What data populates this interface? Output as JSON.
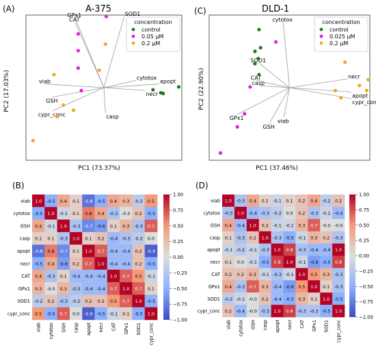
{
  "panels": {
    "A": {
      "label": "(A)",
      "title": "A-375",
      "xlabel": "PC1 (73.37%)",
      "ylabel": "PC2 (17.03%)"
    },
    "C": {
      "label": "(C)",
      "title": "DLD-1",
      "xlabel": "PC1 (37.46%)",
      "ylabel": "PC2 (22.90%)"
    },
    "B": {
      "label": "(B)"
    },
    "D": {
      "label": "(D)"
    }
  },
  "colors": {
    "control": "#1a7a1a",
    "low": "#e619e6",
    "high": "#f0a820",
    "loading": "#9a9a9a",
    "frame": "#333333"
  },
  "colorbar_ticks": [
    "1.00",
    "0.75",
    "0.50",
    "0.25",
    "0.00",
    "−0.25",
    "−0.50",
    "−0.75",
    "−1.00"
  ],
  "chart_data": [
    {
      "type": "scatter",
      "panel": "A",
      "title": "A-375",
      "xlabel": "PC1 (73.37%)",
      "ylabel": "PC2 (17.03%)",
      "xlim": [
        -1,
        1
      ],
      "ylim": [
        -1,
        1
      ],
      "grid": false,
      "legend": {
        "title": "concentration",
        "position": "top-right",
        "entries": [
          "control",
          "0.05 μM",
          "0.2 μM"
        ]
      },
      "series": [
        {
          "name": "control",
          "color": "#1a7a1a",
          "points": [
            [
              0.63,
              -0.03
            ],
            [
              0.73,
              -0.07
            ],
            [
              0.76,
              -0.08
            ],
            [
              0.96,
              0.01
            ]
          ]
        },
        {
          "name": "0.05 μM",
          "color": "#e619e6",
          "points": [
            [
              0.03,
              0.98
            ],
            [
              -0.33,
              0.74
            ],
            [
              -0.33,
              0.51
            ],
            [
              -0.33,
              0.27
            ],
            [
              -0.29,
              -0.04
            ]
          ]
        },
        {
          "name": "0.2 μM",
          "color": "#f0a820",
          "points": [
            [
              -0.6,
              -0.4
            ],
            [
              -0.52,
              -0.24
            ],
            [
              -0.39,
              -0.31
            ],
            [
              -0.64,
              0.18
            ],
            [
              -0.91,
              -0.73
            ],
            [
              -0.06,
              0.24
            ],
            [
              0.02,
              0.6
            ]
          ]
        }
      ],
      "loadings": [
        {
          "name": "GPx1",
          "x": -0.37,
          "y": 0.96
        },
        {
          "name": "CAT",
          "x": -0.37,
          "y": 0.9
        },
        {
          "name": "SOD1",
          "x": 0.26,
          "y": 0.98
        },
        {
          "name": "cytotox",
          "x": 0.41,
          "y": 0.1
        },
        {
          "name": "apopt",
          "x": 0.71,
          "y": 0.05
        },
        {
          "name": "necr",
          "x": 0.53,
          "y": -0.04
        },
        {
          "name": "casp",
          "x": 0.02,
          "y": -0.35
        },
        {
          "name": "viab",
          "x": -0.75,
          "y": 0.05
        },
        {
          "name": "GSH",
          "x": -0.66,
          "y": -0.13
        },
        {
          "name": "cypr_conc",
          "x": -0.66,
          "y": -0.32
        }
      ]
    },
    {
      "type": "scatter",
      "panel": "C",
      "title": "DLD-1",
      "xlabel": "PC1 (37.46%)",
      "ylabel": "PC2 (22.90%)",
      "xlim": [
        -1,
        1
      ],
      "ylim": [
        -1,
        1
      ],
      "grid": false,
      "legend": {
        "title": "concentration",
        "position": "top-right",
        "entries": [
          "control",
          "0.025 μM",
          "0.2 μM"
        ]
      },
      "series": [
        {
          "name": "control",
          "color": "#1a7a1a",
          "points": [
            [
              -0.38,
              0.8
            ],
            [
              -0.36,
              0.55
            ],
            [
              -0.43,
              0.5
            ],
            [
              -0.39,
              0.4
            ],
            [
              -0.43,
              0.33
            ],
            [
              -0.38,
              0.18
            ]
          ]
        },
        {
          "name": "0.025 μM",
          "color": "#e619e6",
          "points": [
            [
              -0.17,
              0.63
            ],
            [
              -0.49,
              0.01
            ],
            [
              -0.56,
              -0.36
            ],
            [
              -0.65,
              -0.54
            ],
            [
              -0.86,
              -0.9
            ]
          ]
        },
        {
          "name": "0.2 μM",
          "color": "#f0a820",
          "points": [
            [
              0.69,
              0.35
            ],
            [
              0.64,
              -0.14
            ],
            [
              0.87,
              0.03
            ],
            [
              0.57,
              -0.04
            ],
            [
              0.96,
              -0.04
            ],
            [
              0.98,
              0.11
            ]
          ]
        }
      ],
      "loadings": [
        {
          "name": "cytotox",
          "x": -0.08,
          "y": 0.9
        },
        {
          "name": "SOD1",
          "x": -0.38,
          "y": 0.34
        },
        {
          "name": "CAT",
          "x": -0.41,
          "y": 0.1
        },
        {
          "name": "casp",
          "x": -0.38,
          "y": 0.03
        },
        {
          "name": "necr",
          "x": 0.72,
          "y": 0.12
        },
        {
          "name": "apopt",
          "x": 0.77,
          "y": -0.06
        },
        {
          "name": "cypr_conc",
          "x": 0.77,
          "y": -0.15
        },
        {
          "name": "GPx1",
          "x": -0.65,
          "y": -0.37
        },
        {
          "name": "GSH",
          "x": -0.25,
          "y": -0.49
        },
        {
          "name": "viab",
          "x": -0.07,
          "y": -0.41
        }
      ]
    },
    {
      "type": "heatmap",
      "panel": "B",
      "labels": [
        "viab",
        "cytotox",
        "GSH",
        "casp",
        "apopt",
        "necr",
        "CAT",
        "GPx1",
        "SOD1",
        "cypr_conc"
      ],
      "zlim": [
        -1,
        1
      ],
      "colormap": "coolwarm",
      "values": [
        [
          1.0,
          -0.5,
          0.4,
          0.1,
          -0.8,
          -0.5,
          0.4,
          0.3,
          -0.2,
          0.5
        ],
        [
          -0.5,
          1.0,
          -0.1,
          0.1,
          0.6,
          0.4,
          -0.3,
          -0.0,
          0.2,
          -0.5
        ],
        [
          0.4,
          -0.1,
          1.0,
          -0.3,
          -0.7,
          -0.6,
          0.1,
          0.3,
          -0.3,
          0.7
        ],
        [
          0.1,
          0.1,
          -0.3,
          1.0,
          0.1,
          0.2,
          -0.4,
          -0.3,
          -0.2,
          0.0
        ],
        [
          -0.8,
          0.6,
          -0.7,
          0.1,
          1.0,
          0.7,
          -0.4,
          -0.4,
          0.2,
          -0.9
        ],
        [
          -0.5,
          0.4,
          -0.6,
          0.2,
          0.7,
          1.0,
          -0.4,
          -0.4,
          0.2,
          -0.5
        ],
        [
          0.4,
          -0.3,
          0.1,
          -0.4,
          -0.4,
          -0.4,
          1.0,
          0.7,
          0.5,
          -0.1
        ],
        [
          0.3,
          -0.0,
          0.3,
          -0.3,
          -0.4,
          -0.4,
          0.7,
          1.0,
          0.7,
          0.1
        ],
        [
          -0.2,
          0.2,
          -0.3,
          -0.2,
          0.2,
          0.2,
          0.5,
          0.7,
          1.0,
          -0.5
        ],
        [
          0.5,
          -0.5,
          0.7,
          0.0,
          -0.9,
          -0.5,
          -0.1,
          0.1,
          -0.5,
          1.0
        ]
      ],
      "display": [
        [
          "1.0",
          "-0.5",
          "0.4",
          "0.1",
          "-0.8",
          "-0.5",
          "0.4",
          "0.3",
          "-0.2",
          "0.5"
        ],
        [
          "-0.5",
          "1.0",
          "-0.1",
          "0.1",
          "0.6",
          "0.4",
          "-0.3",
          "-0.0",
          "0.2",
          "-0.5"
        ],
        [
          "0.4",
          "-0.1",
          "1.0",
          "-0.3",
          "-0.7",
          "-0.6",
          "0.1",
          "0.3",
          "-0.3",
          "0.7"
        ],
        [
          "0.1",
          "0.1",
          "-0.3",
          "1.0",
          "0.1",
          "0.2",
          "-0.4",
          "-0.3",
          "-0.2",
          "0.0"
        ],
        [
          "-0.8",
          "0.6",
          "-0.7",
          "0.1",
          "1.0",
          "0.7",
          "-0.4",
          "-0.4",
          "0.2",
          "-0.9"
        ],
        [
          "-0.5",
          "0.4",
          "-0.6",
          "0.2",
          "0.7",
          "1.0",
          "-0.4",
          "-0.4",
          "0.2",
          "-0.5"
        ],
        [
          "0.4",
          "-0.3",
          "0.1",
          "-0.4",
          "-0.4",
          "-0.4",
          "1.0",
          "0.7",
          "0.5",
          "-0.1"
        ],
        [
          "0.3",
          "-0.0",
          "0.3",
          "-0.3",
          "-0.4",
          "-0.4",
          "0.7",
          "1.0",
          "0.7",
          "0.1"
        ],
        [
          "-0.2",
          "0.2",
          "-0.3",
          "-0.2",
          "0.2",
          "0.2",
          "0.5",
          "0.7",
          "1.0",
          "-0.5"
        ],
        [
          "0.5",
          "-0.5",
          "0.7",
          "0.0",
          "-0.9",
          "-0.5",
          "-0.1",
          "0.1",
          "-0.5",
          "1.0"
        ]
      ]
    },
    {
      "type": "heatmap",
      "panel": "D",
      "labels": [
        "viab",
        "cytotox",
        "GSH",
        "casp",
        "apopt",
        "necr",
        "CAT",
        "GPx1",
        "SOD1",
        "cypr_conc"
      ],
      "zlim": [
        -1,
        1
      ],
      "colormap": "coolwarm",
      "values": [
        [
          1.0,
          -0.3,
          0.4,
          0.1,
          -0.1,
          0.1,
          0.2,
          0.4,
          -0.2,
          0.2
        ],
        [
          -0.3,
          1.0,
          -0.4,
          -0.3,
          -0.2,
          0.0,
          0.2,
          -0.3,
          -0.1,
          -0.4
        ],
        [
          0.4,
          -0.4,
          1.0,
          0.2,
          -0.1,
          -0.1,
          0.3,
          0.7,
          -0.0,
          -0.0
        ],
        [
          0.1,
          -0.3,
          0.2,
          1.0,
          -0.3,
          -0.5,
          -0.1,
          0.3,
          0.2,
          -0.3
        ],
        [
          -0.1,
          -0.2,
          -0.1,
          -0.3,
          1.0,
          0.8,
          -0.3,
          -0.4,
          -0.4,
          1.0
        ],
        [
          0.1,
          0.0,
          -0.1,
          -0.5,
          0.8,
          1.0,
          -0.1,
          -0.6,
          -0.5,
          0.8
        ],
        [
          0.2,
          0.2,
          0.3,
          -0.1,
          -0.3,
          -0.1,
          1.0,
          0.5,
          0.3,
          -0.3
        ],
        [
          0.4,
          -0.3,
          0.7,
          0.3,
          -0.4,
          -0.6,
          0.5,
          1.0,
          0.1,
          -0.3
        ],
        [
          -0.2,
          -0.1,
          -0.0,
          0.2,
          -0.4,
          -0.5,
          0.3,
          0.1,
          1.0,
          -0.5
        ],
        [
          0.2,
          -0.4,
          -0.0,
          -0.3,
          1.0,
          0.8,
          -0.3,
          -0.3,
          -0.5,
          1.0
        ]
      ],
      "display": [
        [
          "1.0",
          "-0.3",
          "0.4",
          "0.1",
          "-0.1",
          "0.1",
          "0.2",
          "0.4",
          "-0.2",
          "0.2"
        ],
        [
          "-0.3",
          "1.0",
          "-0.4",
          "-0.3",
          "-0.2",
          "0.0",
          "0.2",
          "-0.3",
          "-0.1",
          "-0.4"
        ],
        [
          "0.4",
          "-0.4",
          "1.0",
          "0.2",
          "-0.1",
          "-0.1",
          "0.3",
          "0.7",
          "-0.0",
          "-0.0"
        ],
        [
          "0.1",
          "-0.3",
          "0.2",
          "1.0",
          "-0.3",
          "-0.5",
          "-0.1",
          "0.3",
          "0.2",
          "-0.3"
        ],
        [
          "-0.1",
          "-0.2",
          "-0.1",
          "-0.3",
          "1.0",
          "0.8",
          "-0.3",
          "-0.4",
          "-0.4",
          "1.0"
        ],
        [
          "0.1",
          "0.0",
          "-0.1",
          "-0.5",
          "0.8",
          "1.0",
          "-0.1",
          "-0.6",
          "-0.5",
          "0.8"
        ],
        [
          "0.2",
          "0.2",
          "0.3",
          "-0.1",
          "-0.3",
          "-0.1",
          "1.0",
          "0.5",
          "0.3",
          "-0.3"
        ],
        [
          "0.4",
          "-0.3",
          "0.7",
          "0.3",
          "-0.4",
          "-0.6",
          "0.5",
          "1.0",
          "0.1",
          "-0.3"
        ],
        [
          "-0.2",
          "-0.1",
          "-0.0",
          "0.2",
          "-0.4",
          "-0.5",
          "0.3",
          "0.1",
          "1.0",
          "-0.5"
        ],
        [
          "0.2",
          "-0.4",
          "-0.0",
          "-0.3",
          "1.0",
          "0.8",
          "-0.3",
          "-0.3",
          "-0.5",
          "1.0"
        ]
      ]
    }
  ]
}
